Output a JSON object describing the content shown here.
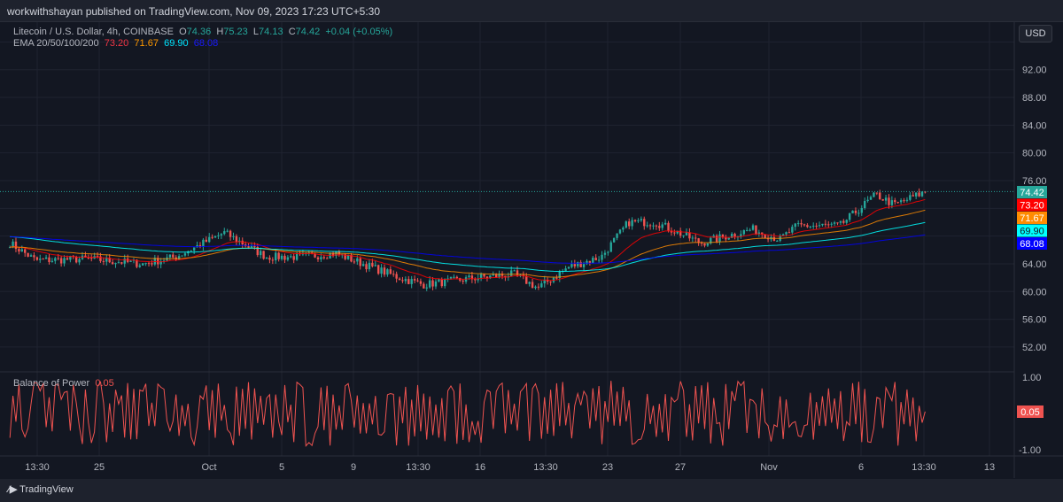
{
  "header": {
    "published": "workwithshayan published on TradingView.com, Nov 09, 2023 17:23 UTC+5:30"
  },
  "legend": {
    "symbol": "Litecoin / U.S. Dollar, 4h, COINBASE",
    "o_label": "O",
    "o": "74.36",
    "h_label": "H",
    "h": "75.23",
    "l_label": "L",
    "l": "74.13",
    "c_label": "C",
    "c": "74.42",
    "change": "+0.04 (+0.05%)",
    "ema_label": "EMA 20/50/100/200",
    "ema20": "73.20",
    "ema50": "71.67",
    "ema100": "69.90",
    "ema200": "68.08"
  },
  "currency_button": "USD",
  "footer": {
    "brand": "TradingView"
  },
  "colors": {
    "up": "#26a69a",
    "down": "#ef5350",
    "ema20": "#ff0000",
    "ema50": "#ff8c00",
    "ema100": "#00ffff",
    "ema200": "#0000ff",
    "bop": "#ef5350"
  },
  "chart_data": [
    {
      "type": "candlestick",
      "title": "Litecoin / U.S. Dollar, 4h, COINBASE",
      "ylim": [
        50,
        96
      ],
      "yticks": [
        "92.00",
        "88.00",
        "84.00",
        "80.00",
        "76.00",
        "64.00",
        "60.00",
        "56.00",
        "52.00"
      ],
      "xticks": [
        "13:30",
        "25",
        "Oct",
        "5",
        "9",
        "13:30",
        "16",
        "13:30",
        "23",
        "27",
        "Nov",
        "6",
        "13:30",
        "13"
      ],
      "approx_close_path": [
        [
          "2023-09-20",
          67
        ],
        [
          "2023-09-21 10:00",
          64.5
        ],
        [
          "2023-09-24 08:00",
          64.7
        ],
        [
          "2023-09-27 08:00",
          64
        ],
        [
          "2023-09-29 04:00",
          65
        ],
        [
          "2023-10-01 20:00",
          68.5
        ],
        [
          "2023-10-04 04:00",
          65
        ],
        [
          "2023-10-06 04:00",
          65
        ],
        [
          "2023-10-08",
          65.5
        ],
        [
          "2023-10-09 12:00",
          64
        ],
        [
          "2023-10-11 12:00",
          62
        ],
        [
          "2023-10-12 20:00",
          61
        ],
        [
          "2023-10-15 20:00",
          62
        ],
        [
          "2023-10-17 20:00",
          62.5
        ],
        [
          "2023-10-19 04:00",
          60.5
        ],
        [
          "2023-10-20 20:00",
          63.5
        ],
        [
          "2023-10-22 16:00",
          65
        ],
        [
          "2023-10-24 04:00",
          70
        ],
        [
          "2023-10-25 16:00",
          70
        ],
        [
          "2023-10-28 04:00",
          67
        ],
        [
          "2023-10-31",
          69
        ],
        [
          "2023-11-01 12:00",
          67.5
        ],
        [
          "2023-11-02 12:00",
          69.5
        ],
        [
          "2023-11-04 20:00",
          69.5
        ],
        [
          "2023-11-06 20:00",
          74
        ],
        [
          "2023-11-07 20:00",
          72.5
        ],
        [
          "2023-11-09 14:00",
          74.42
        ]
      ],
      "last_price": "74.42",
      "ema_values": [
        "73.20",
        "71.67",
        "69.90",
        "68.08"
      ]
    },
    {
      "type": "line",
      "title": "Balance of Power",
      "value": "0.05",
      "ylim": [
        -1,
        1
      ],
      "yticks": [
        "1.00",
        "-1.00"
      ]
    }
  ]
}
